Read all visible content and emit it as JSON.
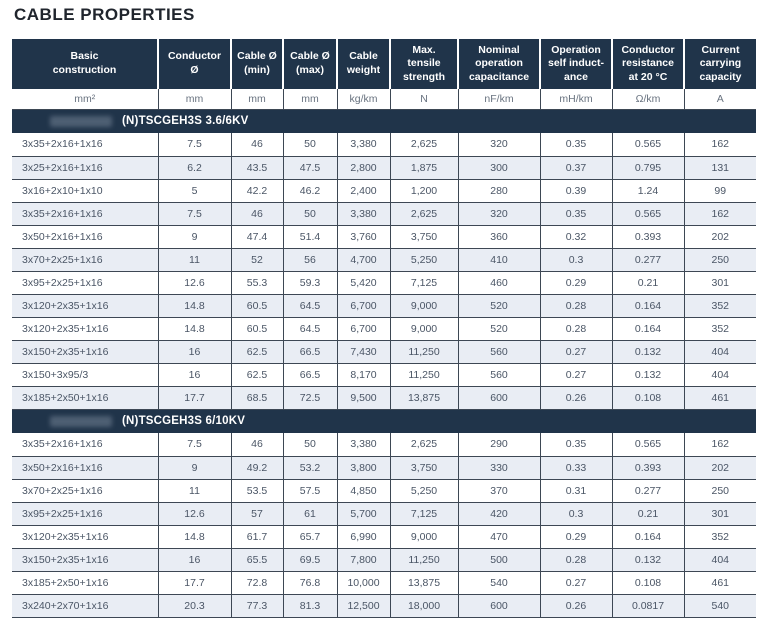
{
  "page_title": "CABLE PROPERTIES",
  "colors": {
    "header_bg": "#20344a",
    "row_alt_bg": "#e9edf4",
    "border": "#3d4754",
    "header_text": "#ffffff",
    "body_text": "#4a5565",
    "unit_text": "#68727f",
    "title_text": "#20252d"
  },
  "table": {
    "columns": [
      {
        "label": "Basic\nconstruction",
        "unit": "mm²"
      },
      {
        "label": "Conductor\nØ",
        "unit": "mm"
      },
      {
        "label": "Cable Ø\n(min)",
        "unit": "mm"
      },
      {
        "label": "Cable Ø\n(max)",
        "unit": "mm"
      },
      {
        "label": "Cable\nweight",
        "unit": "kg/km"
      },
      {
        "label": "Max.\ntensile\nstrength",
        "unit": "N"
      },
      {
        "label": "Nominal\noperation\ncapacitance",
        "unit": "nF/km"
      },
      {
        "label": "Operation\nself induct-\nance",
        "unit": "mH/km"
      },
      {
        "label": "Conductor\nresistance\nat 20 °C",
        "unit": "Ω/km"
      },
      {
        "label": "Current\ncarrying\ncapacity",
        "unit": "A"
      }
    ],
    "sections": [
      {
        "name": "(N)TSCGEH3S 3.6/6KV",
        "rows": [
          [
            "3x35+2x16+1x16",
            "7.5",
            "46",
            "50",
            "3,380",
            "2,625",
            "320",
            "0.35",
            "0.565",
            "162"
          ],
          [
            "3x25+2x16+1x16",
            "6.2",
            "43.5",
            "47.5",
            "2,800",
            "1,875",
            "300",
            "0.37",
            "0.795",
            "131"
          ],
          [
            "3x16+2x10+1x10",
            "5",
            "42.2",
            "46.2",
            "2,400",
            "1,200",
            "280",
            "0.39",
            "1.24",
            "99"
          ],
          [
            "3x35+2x16+1x16",
            "7.5",
            "46",
            "50",
            "3,380",
            "2,625",
            "320",
            "0.35",
            "0.565",
            "162"
          ],
          [
            "3x50+2x16+1x16",
            "9",
            "47.4",
            "51.4",
            "3,760",
            "3,750",
            "360",
            "0.32",
            "0.393",
            "202"
          ],
          [
            "3x70+2x25+1x16",
            "11",
            "52",
            "56",
            "4,700",
            "5,250",
            "410",
            "0.3",
            "0.277",
            "250"
          ],
          [
            "3x95+2x25+1x16",
            "12.6",
            "55.3",
            "59.3",
            "5,420",
            "7,125",
            "460",
            "0.29",
            "0.21",
            "301"
          ],
          [
            "3x120+2x35+1x16",
            "14.8",
            "60.5",
            "64.5",
            "6,700",
            "9,000",
            "520",
            "0.28",
            "0.164",
            "352"
          ],
          [
            "3x120+2x35+1x16",
            "14.8",
            "60.5",
            "64.5",
            "6,700",
            "9,000",
            "520",
            "0.28",
            "0.164",
            "352"
          ],
          [
            "3x150+2x35+1x16",
            "16",
            "62.5",
            "66.5",
            "7,430",
            "11,250",
            "560",
            "0.27",
            "0.132",
            "404"
          ],
          [
            "3x150+3x95/3",
            "16",
            "62.5",
            "66.5",
            "8,170",
            "11,250",
            "560",
            "0.27",
            "0.132",
            "404"
          ],
          [
            "3x185+2x50+1x16",
            "17.7",
            "68.5",
            "72.5",
            "9,500",
            "13,875",
            "600",
            "0.26",
            "0.108",
            "461"
          ]
        ]
      },
      {
        "name": "(N)TSCGEH3S 6/10KV",
        "rows": [
          [
            "3x35+2x16+1x16",
            "7.5",
            "46",
            "50",
            "3,380",
            "2,625",
            "290",
            "0.35",
            "0.565",
            "162"
          ],
          [
            "3x50+2x16+1x16",
            "9",
            "49.2",
            "53.2",
            "3,800",
            "3,750",
            "330",
            "0.33",
            "0.393",
            "202"
          ],
          [
            "3x70+2x25+1x16",
            "11",
            "53.5",
            "57.5",
            "4,850",
            "5,250",
            "370",
            "0.31",
            "0.277",
            "250"
          ],
          [
            "3x95+2x25+1x16",
            "12.6",
            "57",
            "61",
            "5,700",
            "7,125",
            "420",
            "0.3",
            "0.21",
            "301"
          ],
          [
            "3x120+2x35+1x16",
            "14.8",
            "61.7",
            "65.7",
            "6,990",
            "9,000",
            "470",
            "0.29",
            "0.164",
            "352"
          ],
          [
            "3x150+2x35+1x16",
            "16",
            "65.5",
            "69.5",
            "7,800",
            "11,250",
            "500",
            "0.28",
            "0.132",
            "404"
          ],
          [
            "3x185+2x50+1x16",
            "17.7",
            "72.8",
            "76.8",
            "10,000",
            "13,875",
            "540",
            "0.27",
            "0.108",
            "461"
          ],
          [
            "3x240+2x70+1x16",
            "20.3",
            "77.3",
            "81.3",
            "12,500",
            "18,000",
            "600",
            "0.26",
            "0.0817",
            "540"
          ]
        ]
      }
    ]
  }
}
